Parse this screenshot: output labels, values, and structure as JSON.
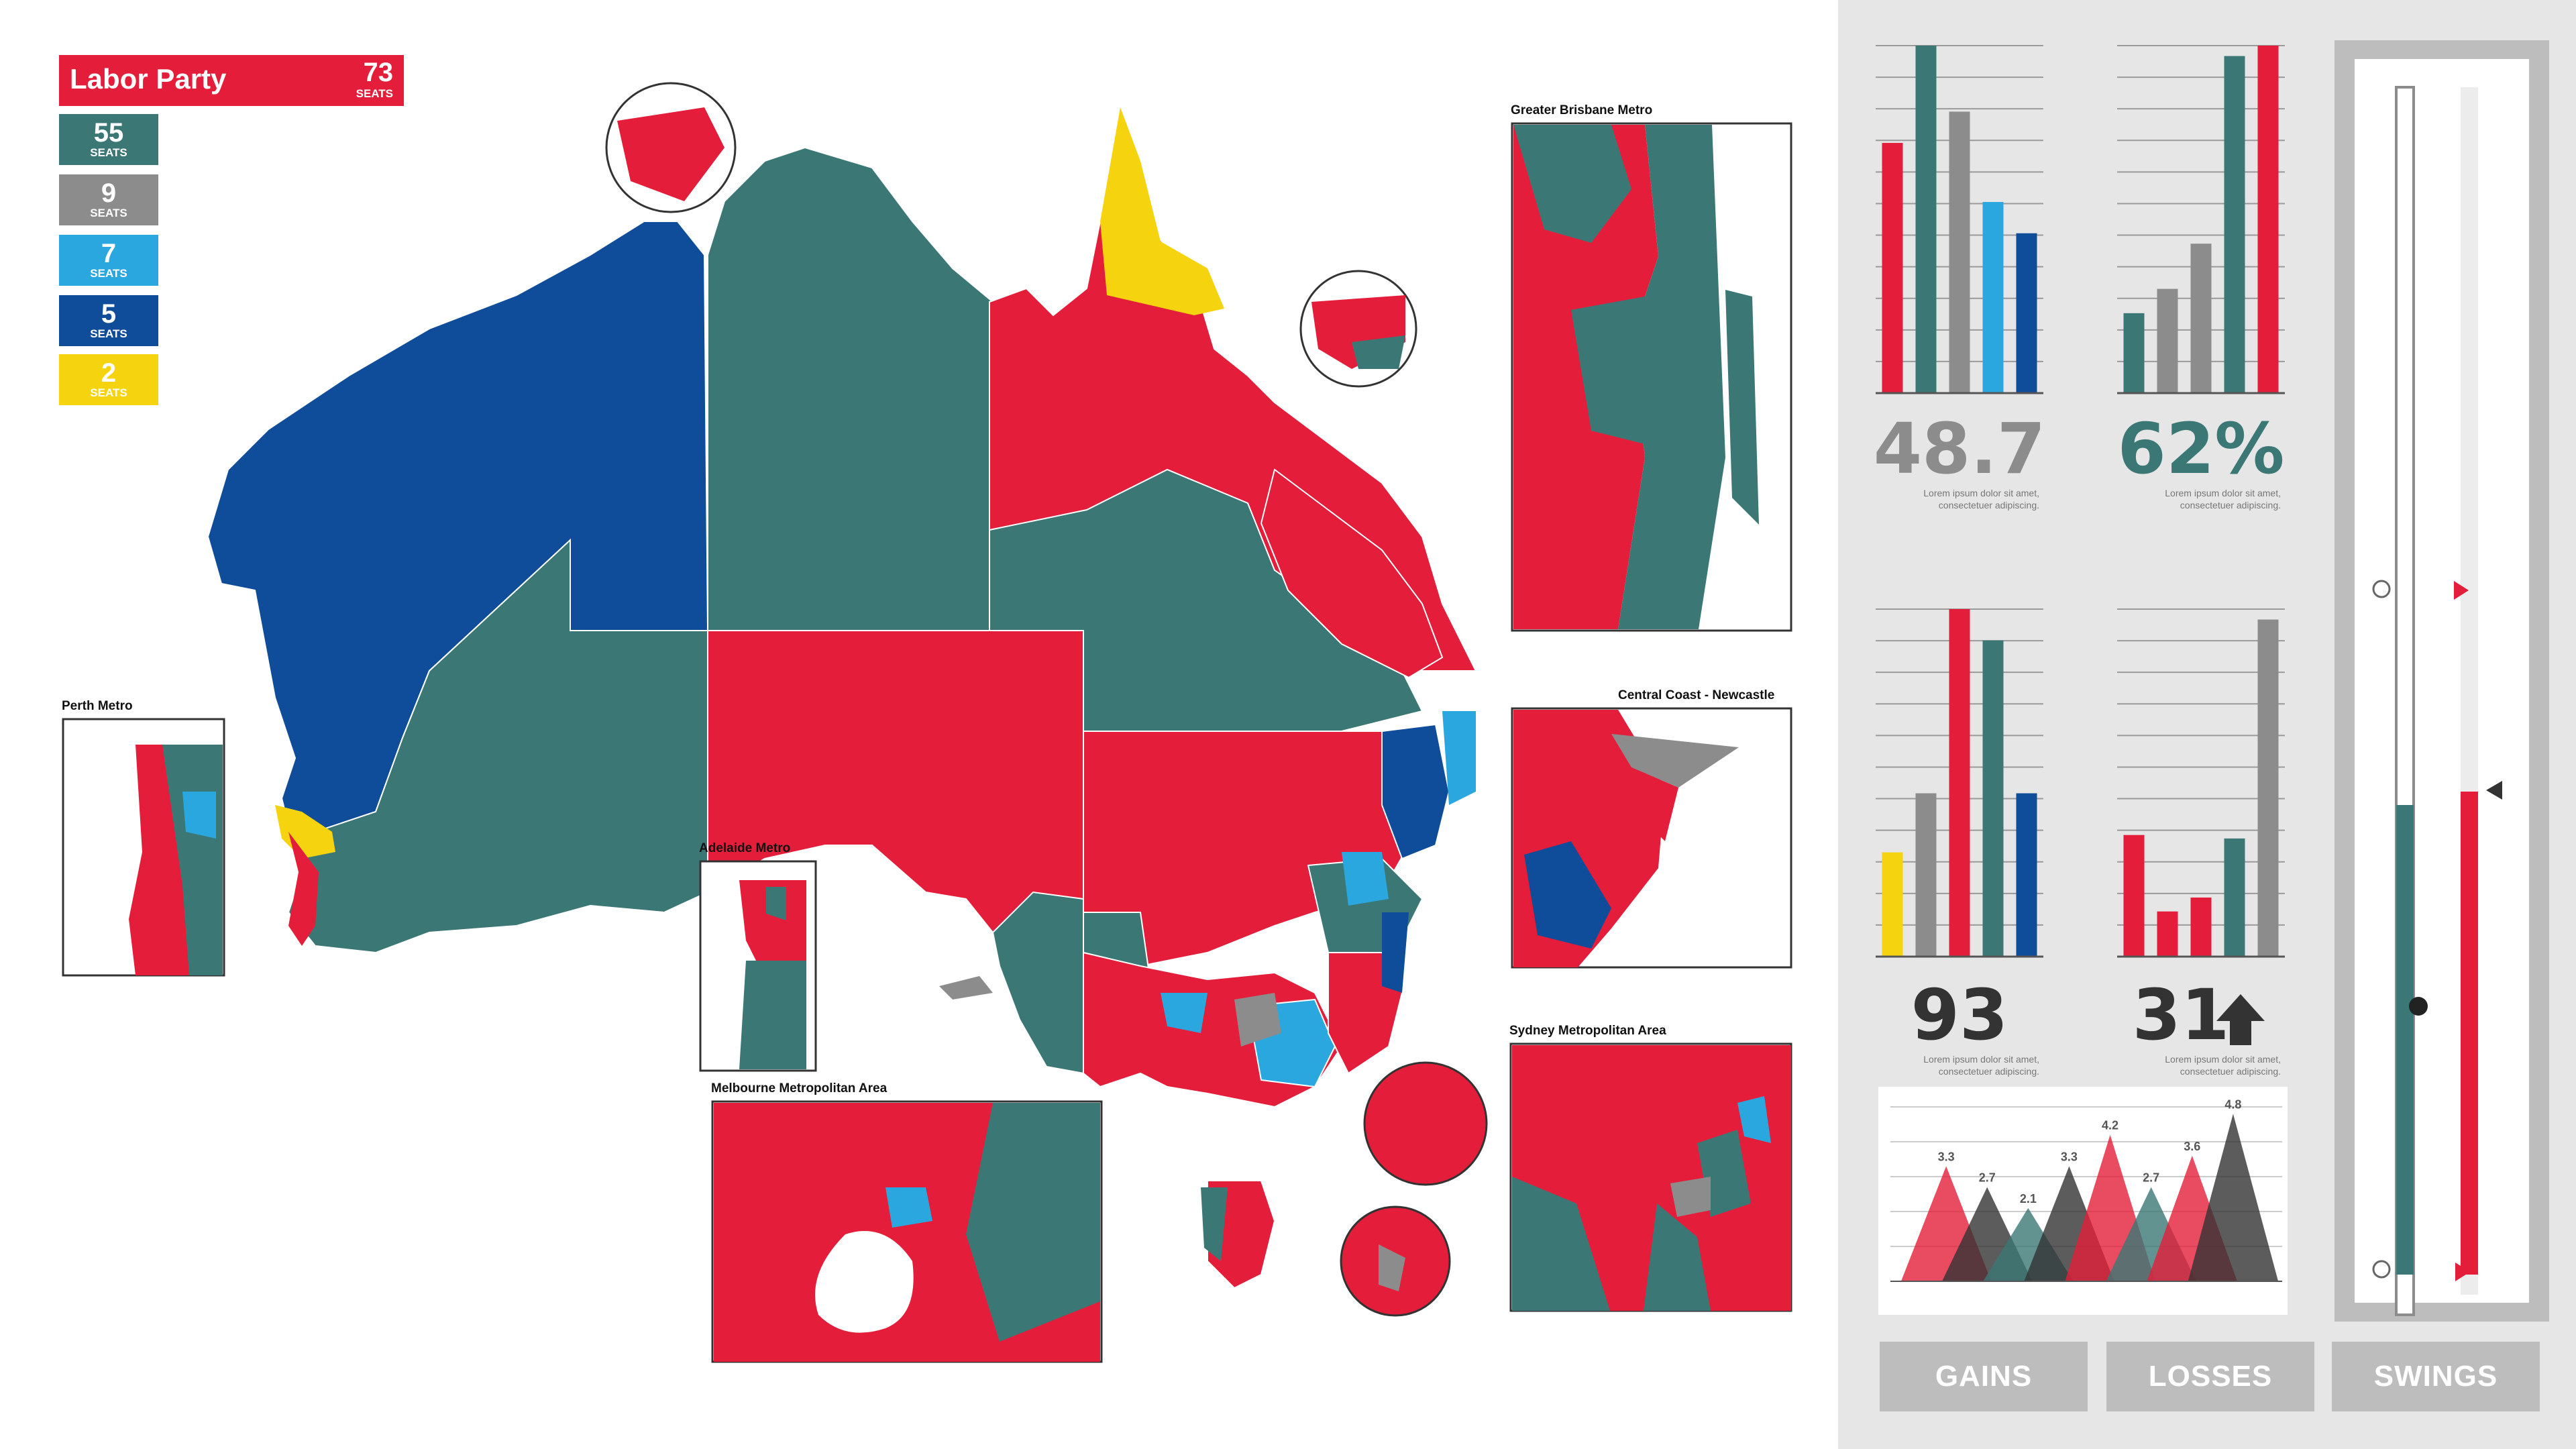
{
  "legend": {
    "title": "Labor Party",
    "title_seats": "73",
    "seats_unit": "SEATS",
    "items": [
      {
        "value": "55",
        "unit": "SEATS",
        "color": "#3b7875"
      },
      {
        "value": "9",
        "unit": "SEATS",
        "color": "#8c8c8c"
      },
      {
        "value": "7",
        "unit": "SEATS",
        "color": "#2aa7de"
      },
      {
        "value": "5",
        "unit": "SEATS",
        "color": "#0f4c99"
      },
      {
        "value": "2",
        "unit": "SEATS",
        "color": "#f5d40f"
      }
    ]
  },
  "colors": {
    "labor": "#e41e3a",
    "teal": "#3b7875",
    "gray": "#8c8c8c",
    "lightblue": "#2aa7de",
    "darkblue": "#0f4c99",
    "yellow": "#f5d40f",
    "panel": "#e6e6e6"
  },
  "insets": {
    "brisbane": "Greater Brisbane Metro",
    "perth": "Perth Metro",
    "central_coast": "Central Coast - Newcastle",
    "adelaide": "Adelaide Metro",
    "sydney": "Sydney Metropolitan Area",
    "melbourne": "Melbourne Metropolitan Area"
  },
  "stats": {
    "tl": {
      "value": "48.7",
      "note": "Lorem ipsum dolor sit amet, consectetuer adipiscing."
    },
    "tr": {
      "value": "62%",
      "note": "Lorem ipsum dolor sit amet, consectetuer adipiscing."
    },
    "bl": {
      "value": "93",
      "note": "Lorem ipsum dolor sit amet, consectetuer adipiscing."
    },
    "br": {
      "value": "31",
      "note": "Lorem ipsum dolor sit amet, consectetuer adipiscing."
    }
  },
  "tabs": {
    "gains": "GAINS",
    "losses": "LOSSES",
    "swings": "SWINGS"
  },
  "chart_data": [
    {
      "type": "bar",
      "name": "tl",
      "values": [
        0.72,
        1.0,
        0.81,
        0.55,
        0.46
      ],
      "colors": [
        "#e41e3a",
        "#3b7875",
        "#8c8c8c",
        "#2aa7de",
        "#0f4c99"
      ]
    },
    {
      "type": "bar",
      "name": "tr",
      "values": [
        0.23,
        0.3,
        0.43,
        0.97,
        1.0
      ],
      "colors": [
        "#3b7875",
        "#8c8c8c",
        "#8c8c8c",
        "#3b7875",
        "#e41e3a"
      ]
    },
    {
      "type": "bar",
      "name": "bl",
      "values": [
        0.3,
        0.47,
        1.0,
        0.91,
        0.47
      ],
      "colors": [
        "#f5d40f",
        "#8c8c8c",
        "#e41e3a",
        "#3b7875",
        "#0f4c99"
      ]
    },
    {
      "type": "bar",
      "name": "br",
      "values": [
        0.35,
        0.13,
        0.17,
        0.34,
        0.97
      ],
      "colors": [
        "#e41e3a",
        "#e41e3a",
        "#e41e3a",
        "#3b7875",
        "#8c8c8c"
      ]
    },
    {
      "type": "area",
      "name": "triangles",
      "labels": [
        "3.3",
        "2.7",
        "2.1",
        "3.3",
        "4.2",
        "2.7",
        "3.6",
        "4.8"
      ],
      "values": [
        3.3,
        2.7,
        2.1,
        3.3,
        4.2,
        2.7,
        3.6,
        4.8
      ],
      "colors": [
        "#e41e3a",
        "#333333",
        "#3b7875",
        "#333333",
        "#e41e3a",
        "#3b7875",
        "#e41e3a",
        "#333333"
      ]
    }
  ],
  "swings": {
    "left_level": 0.41,
    "right_level": 0.4
  }
}
